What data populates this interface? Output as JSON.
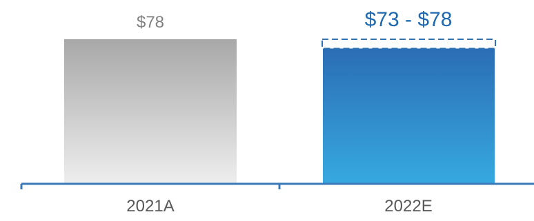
{
  "chart_data": {
    "type": "bar",
    "categories": [
      "2021A",
      "2022E"
    ],
    "data_labels": [
      "$78",
      "$73 - $78"
    ],
    "bars": [
      {
        "category": "2021A",
        "value": 78,
        "label": "$78",
        "style": "actual"
      },
      {
        "category": "2022E",
        "low": 73,
        "high": 78,
        "label": "$73 - $78",
        "style": "estimate-range"
      }
    ],
    "ylim": [
      0,
      78
    ],
    "grid": false,
    "legend": "none",
    "colors": {
      "actual_top": "#a8a8a8",
      "actual_bottom": "#eeeeee",
      "estimate_top": "#2b6db5",
      "estimate_bottom": "#36a9e0",
      "range_outline": "#2e75b6",
      "axis": "#3a78b8",
      "label_gray": "#7f7f7f",
      "label_blue": "#1f69b0",
      "tick_label": "#595959"
    }
  }
}
